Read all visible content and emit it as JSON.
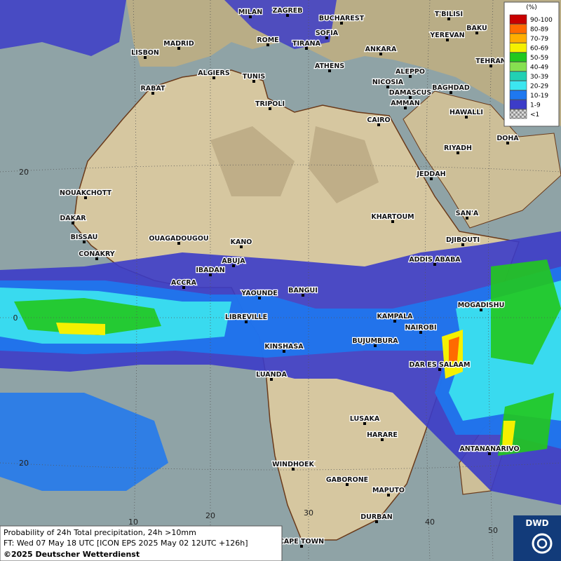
{
  "legend": {
    "title": "(%)",
    "entries": [
      {
        "label": "90-100",
        "color": "#c80000"
      },
      {
        "label": "80-89",
        "color": "#ff6a00"
      },
      {
        "label": "70-79",
        "color": "#ffae00"
      },
      {
        "label": "60-69",
        "color": "#f5f000"
      },
      {
        "label": "50-59",
        "color": "#22c81e"
      },
      {
        "label": "40-49",
        "color": "#86e050"
      },
      {
        "label": "30-39",
        "color": "#22d0b4"
      },
      {
        "label": "20-29",
        "color": "#3ce6f0"
      },
      {
        "label": "10-19",
        "color": "#1e78f0"
      },
      {
        "label": "1-9",
        "color": "#3c3cc8"
      },
      {
        "label": "<1",
        "color": "#a0a0a0"
      }
    ]
  },
  "cities": [
    "MILAN",
    "ZAGREB",
    "BUCHAREST",
    "T'BILISI",
    "BAKU",
    "MADRID",
    "ROME",
    "SOFIA",
    "YEREVAN",
    "LISBON",
    "TIRANA",
    "ANKARA",
    "TEHRAN",
    "ALGIERS",
    "TUNIS",
    "ATHENS",
    "ALEPPO",
    "RABAT",
    "NICOSIA",
    "BAGHDAD",
    "DAMASCUS",
    "TRIPOLI",
    "AMMAN",
    "HAWALLI",
    "CAIRO",
    "DOHA",
    "RIYADH",
    "JEDDAH",
    "NOUAKCHOTT",
    "SAN'A",
    "KHARTOUM",
    "DAKAR",
    "BISSAU",
    "OUAGADOUGOU",
    "KANO",
    "DJIBOUTI",
    "CONAKRY",
    "ABUJA",
    "ADDIS ABABA",
    "IBADAN",
    "ACCRA",
    "YAOUNDE",
    "BANGUI",
    "MOGADISHU",
    "LIBREVILLE",
    "KAMPALA",
    "NAIROBI",
    "BUJUMBURA",
    "KINSHASA",
    "DAR ES SALAAM",
    "LUANDA",
    "LUSAKA",
    "HARARE",
    "ANTANANARIVO",
    "WINDHOEK",
    "GABORONE",
    "MAPUTO",
    "DURBAN",
    "CAPE TOWN"
  ],
  "latitude_labels": [
    "20",
    "0",
    "20"
  ],
  "longitude_labels": [
    "10",
    "20",
    "30",
    "40",
    "50"
  ],
  "footer": {
    "lines": [
      "Probability of 24h Total precipitation, 24h >10mm",
      "FT: Wed 07 May 18 UTC [ICON EPS 2025 May 02 12UTC +126h]",
      "©2025 Deutscher Wetterdienst"
    ]
  },
  "logo": "DWD"
}
